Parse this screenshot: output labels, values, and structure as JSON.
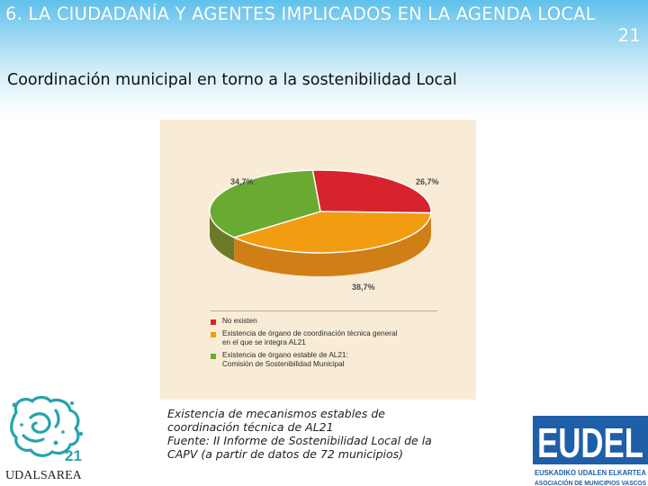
{
  "slide": {
    "title_line1": "6. LA CIUDADANÍA Y AGENTES IMPLICADOS EN LA AGENDA LOCAL",
    "title_line2": "21",
    "subtitle": "Coordinación municipal en torno a la sostenibilidad Local",
    "caption_lines": [
      "Existencia de mecanismos estables de",
      "coordinación técnica de AL21",
      "Fuente: II Informe de Sostenibilidad Local de la",
      "CAPV (a partir de datos de 72 municipios)"
    ]
  },
  "chart_data": {
    "type": "pie",
    "title": "",
    "slices": [
      {
        "label": "No existen",
        "value": 26.7,
        "value_label": "26,7%",
        "color": "#d7232d",
        "side_color": "#a51b22"
      },
      {
        "label": "Existencia de órgano de coordinación técnica general\nen el que se integra AL21",
        "value": 38.7,
        "value_label": "38,7%",
        "color": "#f29c12",
        "side_color": "#d07f16"
      },
      {
        "label": "Existencia de órgano estable de AL21:\nComisión de Sostenibilidad Municipal",
        "value": 34.7,
        "value_label": "34,7%",
        "color": "#69ab32",
        "side_color": "#6b7a26"
      }
    ],
    "legend_position": "bottom"
  },
  "logos": {
    "left": {
      "text_21": "21",
      "text_name": "UDALSAREA",
      "accent": "#27a3ad"
    },
    "right": {
      "text_main": "EUDEL",
      "line1": "EUSKADIKO UDALEN ELKARTEA",
      "line2": "ASOCIACIÓN DE MUNICIPIOS VASCOS",
      "color": "#1f5ea8"
    }
  }
}
